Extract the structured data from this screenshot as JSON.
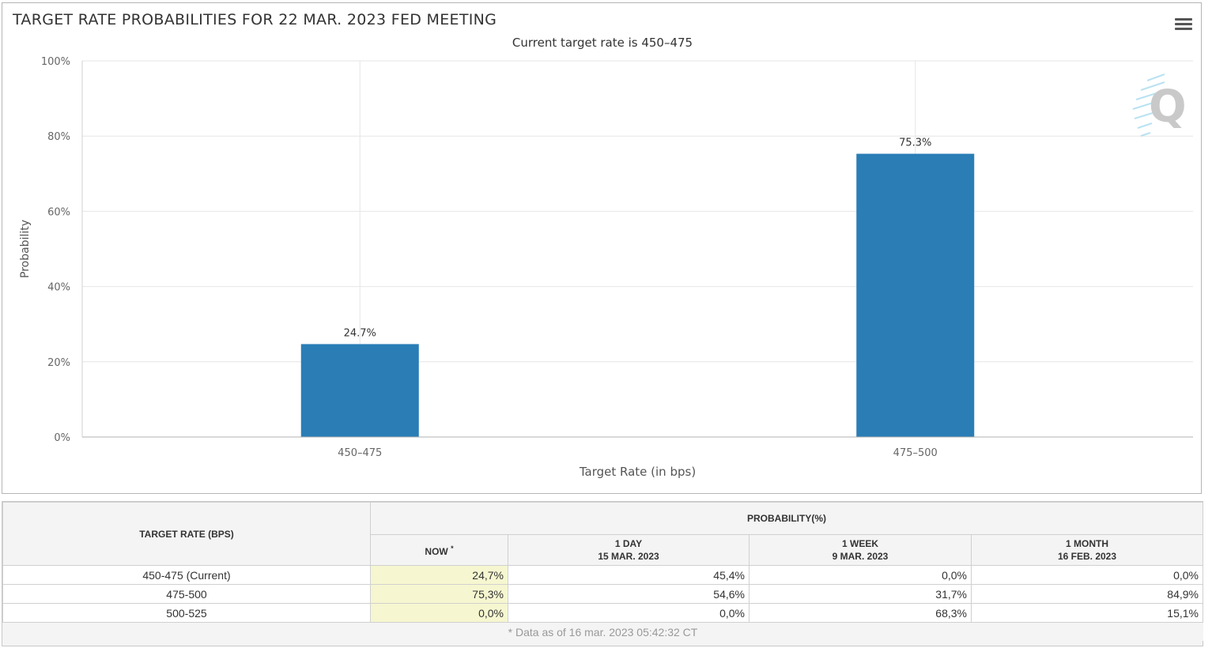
{
  "chart": {
    "title": "TARGET RATE PROBABILITIES FOR 22 MAR. 2023 FED MEETING",
    "subtitle": "Current target rate is 450–475",
    "menu_icon": "hamburger-menu-icon",
    "watermark_icon": "quikstrike-q-logo-icon",
    "watermark_letter": "Q",
    "bar_color": "#2a7db5",
    "grid_color": "#e6e6e6"
  },
  "chart_data": {
    "type": "bar",
    "categories": [
      "450–475",
      "475–500"
    ],
    "values": [
      24.7,
      75.3
    ],
    "value_labels": [
      "24.7%",
      "75.3%"
    ],
    "xlabel": "Target Rate (in bps)",
    "ylabel": "Probability",
    "ylim": [
      0,
      100
    ],
    "yticks": [
      0,
      20,
      40,
      60,
      80,
      100
    ],
    "ytick_labels": [
      "0%",
      "20%",
      "40%",
      "60%",
      "80%",
      "100%"
    ],
    "grid": true,
    "legend": false
  },
  "table": {
    "target_header": "TARGET RATE (BPS)",
    "prob_header": "PROBABILITY(%)",
    "columns": [
      {
        "line1": "NOW",
        "line2": "",
        "marker": "*"
      },
      {
        "line1": "1 DAY",
        "line2": "15 MAR. 2023",
        "marker": ""
      },
      {
        "line1": "1 WEEK",
        "line2": "9 MAR. 2023",
        "marker": ""
      },
      {
        "line1": "1 MONTH",
        "line2": "16 FEB. 2023",
        "marker": ""
      }
    ],
    "rows": [
      {
        "rate": "450-475 (Current)",
        "values": [
          "24,7%",
          "45,4%",
          "0,0%",
          "0,0%"
        ]
      },
      {
        "rate": "475-500",
        "values": [
          "75,3%",
          "54,6%",
          "31,7%",
          "84,9%"
        ]
      },
      {
        "rate": "500-525",
        "values": [
          "0,0%",
          "0,0%",
          "68,3%",
          "15,1%"
        ]
      }
    ],
    "footnote": "* Data as of 16 mar. 2023 05:42:32 CT"
  }
}
